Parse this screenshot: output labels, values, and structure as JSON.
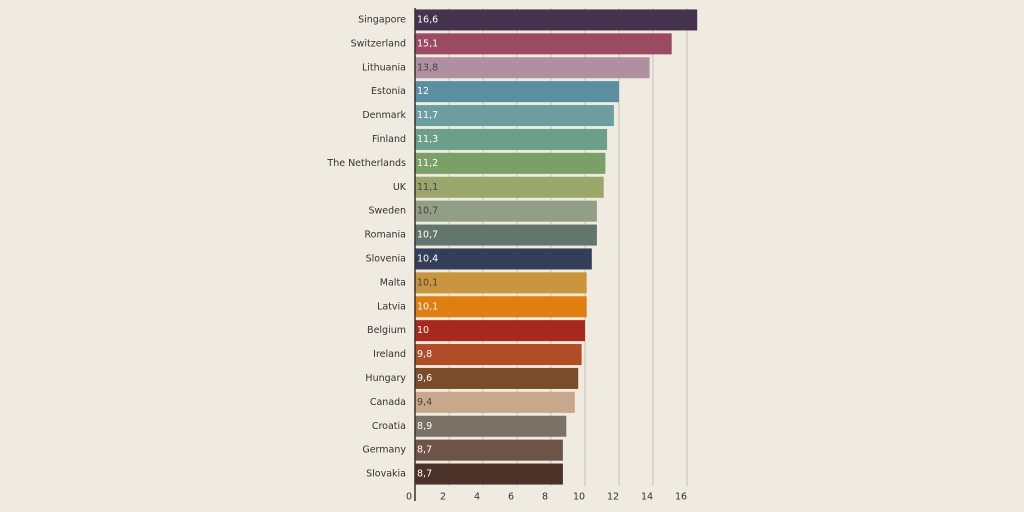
{
  "chart_data": {
    "type": "barh",
    "categories": [
      "Singapore",
      "Switzerland",
      "Lithuania",
      "Estonia",
      "Denmark",
      "Finland",
      "The Netherlands",
      "UK",
      "Sweden",
      "Romania",
      "Slovenia",
      "Malta",
      "Latvia",
      "Belgium",
      "Ireland",
      "Hungary",
      "Canada",
      "Croatia",
      "Germany",
      "Slovakia"
    ],
    "values": [
      16.6,
      15.1,
      13.8,
      12,
      11.7,
      11.3,
      11.2,
      11.1,
      10.7,
      10.7,
      10.4,
      10.1,
      10.1,
      10,
      9.8,
      9.6,
      9.4,
      8.9,
      8.7,
      8.7
    ],
    "value_labels": [
      "16,6",
      "15,1",
      "13,8",
      "12",
      "11,7",
      "11,3",
      "11,2",
      "11,1",
      "10,7",
      "10,7",
      "10,4",
      "10,1",
      "10,1",
      "10",
      "9,8",
      "9,6",
      "9,4",
      "8,9",
      "8,7",
      "8,7"
    ],
    "colors": [
      "#45324c",
      "#9a4a62",
      "#b090a0",
      "#5a8ea0",
      "#6c9ea0",
      "#6aa08a",
      "#7aa068",
      "#9aa66a",
      "#929e86",
      "#62766e",
      "#343e58",
      "#c9963e",
      "#e07e10",
      "#a8281e",
      "#b04c28",
      "#7a4c2a",
      "#c8a88a",
      "#7a7266",
      "#6e5446",
      "#4a3228"
    ],
    "xlim": [
      0,
      16
    ],
    "xticks": [
      0,
      2,
      4,
      6,
      8,
      10,
      12,
      14,
      16
    ],
    "grid": true
  }
}
